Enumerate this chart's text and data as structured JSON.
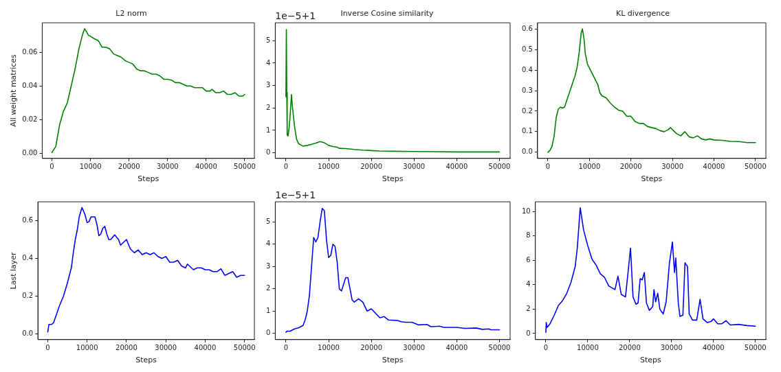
{
  "chart_data": [
    {
      "type": "line",
      "title": "L2 norm",
      "xlabel": "Steps",
      "ylabel": "All weight matrices",
      "grid": false,
      "legend": false,
      "marker": "none",
      "line_style": "solid",
      "xlim": [
        -2500,
        52500
      ],
      "xticks": [
        0,
        10000,
        20000,
        30000,
        40000,
        50000
      ],
      "ylim": [
        -0.003,
        0.0775
      ],
      "yticks": [
        {
          "value": 0,
          "label": "0.00"
        },
        {
          "value": 0.02,
          "label": "0.02"
        },
        {
          "value": 0.04,
          "label": "0.04"
        },
        {
          "value": 0.06,
          "label": "0.06"
        }
      ],
      "x": [
        0,
        1000,
        2000,
        3000,
        4000,
        5000,
        6000,
        7000,
        8000,
        8500,
        9000,
        9500,
        10000,
        11000,
        12000,
        13000,
        14000,
        15000,
        16000,
        17000,
        18000,
        19000,
        20000,
        21000,
        22000,
        23000,
        24000,
        25000,
        26000,
        27000,
        28000,
        29000,
        30000,
        31000,
        32000,
        33000,
        34000,
        35000,
        36000,
        37000,
        38000,
        39000,
        40000,
        41000,
        41500,
        42500,
        43500,
        44500,
        45500,
        46500,
        47500,
        48500,
        49500,
        50000
      ],
      "series": [
        {
          "color": "#008000",
          "values": [
            0.0005,
            0.004,
            0.017,
            0.025,
            0.03,
            0.04,
            0.05,
            0.062,
            0.071,
            0.074,
            0.072,
            0.07,
            0.0695,
            0.068,
            0.067,
            0.063,
            0.063,
            0.062,
            0.059,
            0.058,
            0.057,
            0.055,
            0.054,
            0.053,
            0.05,
            0.049,
            0.049,
            0.048,
            0.047,
            0.047,
            0.046,
            0.044,
            0.044,
            0.0435,
            0.042,
            0.042,
            0.041,
            0.04,
            0.04,
            0.039,
            0.039,
            0.039,
            0.037,
            0.037,
            0.038,
            0.036,
            0.036,
            0.037,
            0.035,
            0.035,
            0.036,
            0.034,
            0.034,
            0.035
          ]
        }
      ]
    },
    {
      "type": "line",
      "title": "Inverse Cosine similarity",
      "xlabel": "Steps",
      "annotations": [
        "1e−5+1"
      ],
      "grid": false,
      "legend": false,
      "marker": "none",
      "line_style": "solid",
      "xlim": [
        -2500,
        52500
      ],
      "xticks": [
        0,
        10000,
        20000,
        30000,
        40000,
        50000
      ],
      "ylim": [
        -0.25,
        5.8
      ],
      "yticks": [
        0,
        1,
        2,
        3,
        4,
        5
      ],
      "x": [
        0,
        100,
        200,
        300,
        500,
        800,
        1100,
        1300,
        1500,
        2000,
        2500,
        3000,
        4000,
        5000,
        6000,
        7000,
        8000,
        9000,
        10000,
        11000,
        12000,
        12500,
        14000,
        16000,
        18000,
        20000,
        22000,
        25000,
        30000,
        35000,
        40000,
        45000,
        50000
      ],
      "series": [
        {
          "color": "#008000",
          "values": [
            2.5,
            5.5,
            2.7,
            0.8,
            0.75,
            1.2,
            2.0,
            2.6,
            2.1,
            1.2,
            0.6,
            0.4,
            0.3,
            0.33,
            0.38,
            0.43,
            0.5,
            0.45,
            0.33,
            0.28,
            0.25,
            0.2,
            0.19,
            0.15,
            0.12,
            0.1,
            0.08,
            0.07,
            0.06,
            0.05,
            0.04,
            0.04,
            0.04
          ]
        }
      ]
    },
    {
      "type": "line",
      "title": "KL divergence",
      "xlabel": "Steps",
      "grid": false,
      "legend": false,
      "marker": "none",
      "line_style": "solid",
      "xlim": [
        -2500,
        52500
      ],
      "xticks": [
        0,
        10000,
        20000,
        30000,
        40000,
        50000
      ],
      "ylim": [
        -0.03,
        0.63
      ],
      "yticks": [
        {
          "value": 0,
          "label": "0.0"
        },
        {
          "value": 0.1,
          "label": "0.1"
        },
        {
          "value": 0.2,
          "label": "0.2"
        },
        {
          "value": 0.3,
          "label": "0.3"
        },
        {
          "value": 0.4,
          "label": "0.4"
        },
        {
          "value": 0.5,
          "label": "0.5"
        },
        {
          "value": 0.6,
          "label": "0.6"
        }
      ],
      "x": [
        0,
        500,
        1000,
        1500,
        2000,
        2500,
        3000,
        3500,
        4000,
        5000,
        6000,
        6500,
        7000,
        7500,
        8000,
        8300,
        8700,
        9000,
        9500,
        10000,
        11000,
        12000,
        12500,
        13000,
        14000,
        15000,
        16000,
        17000,
        18000,
        19000,
        20000,
        21000,
        22000,
        23000,
        24000,
        25000,
        26000,
        27000,
        28000,
        29000,
        29500,
        30000,
        31000,
        32000,
        33000,
        34000,
        35000,
        36000,
        37000,
        38000,
        39000,
        40000,
        42000,
        44000,
        46000,
        48000,
        50000
      ],
      "series": [
        {
          "color": "#008000",
          "values": [
            0.0,
            0.01,
            0.03,
            0.08,
            0.17,
            0.21,
            0.22,
            0.215,
            0.22,
            0.28,
            0.34,
            0.37,
            0.41,
            0.48,
            0.58,
            0.6,
            0.55,
            0.48,
            0.43,
            0.41,
            0.37,
            0.33,
            0.29,
            0.275,
            0.265,
            0.24,
            0.22,
            0.205,
            0.2,
            0.175,
            0.175,
            0.15,
            0.14,
            0.14,
            0.125,
            0.12,
            0.115,
            0.105,
            0.1,
            0.11,
            0.12,
            0.11,
            0.09,
            0.08,
            0.1,
            0.075,
            0.07,
            0.08,
            0.065,
            0.06,
            0.065,
            0.06,
            0.058,
            0.053,
            0.052,
            0.047,
            0.047
          ]
        }
      ]
    },
    {
      "type": "line",
      "xlabel": "Steps",
      "ylabel": "Last layer",
      "grid": false,
      "legend": false,
      "marker": "none",
      "line_style": "solid",
      "xlim": [
        -2500,
        52500
      ],
      "xticks": [
        0,
        10000,
        20000,
        30000,
        40000,
        50000
      ],
      "ylim": [
        -0.03,
        0.7
      ],
      "yticks": [
        {
          "value": 0,
          "label": "0.0"
        },
        {
          "value": 0.2,
          "label": "0.2"
        },
        {
          "value": 0.4,
          "label": "0.4"
        },
        {
          "value": 0.6,
          "label": "0.6"
        }
      ],
      "x": [
        0,
        300,
        1000,
        1500,
        2000,
        3000,
        4000,
        5000,
        6000,
        6500,
        7000,
        7500,
        8000,
        8700,
        9500,
        10000,
        10500,
        11000,
        12000,
        12500,
        13000,
        13500,
        14000,
        14500,
        15000,
        15500,
        16000,
        17000,
        18000,
        18500,
        19000,
        20000,
        21000,
        22000,
        23000,
        24000,
        25000,
        26000,
        27000,
        28000,
        29000,
        30000,
        31000,
        32000,
        33000,
        34000,
        35000,
        35500,
        36000,
        37000,
        38000,
        39000,
        40000,
        41000,
        42000,
        43000,
        44000,
        45000,
        46000,
        47000,
        48000,
        49000,
        50000
      ],
      "series": [
        {
          "color": "#0000ff",
          "values": [
            0.01,
            0.05,
            0.05,
            0.06,
            0.09,
            0.15,
            0.2,
            0.27,
            0.35,
            0.43,
            0.5,
            0.55,
            0.62,
            0.67,
            0.63,
            0.59,
            0.595,
            0.62,
            0.62,
            0.58,
            0.52,
            0.53,
            0.56,
            0.57,
            0.53,
            0.5,
            0.5,
            0.525,
            0.5,
            0.47,
            0.48,
            0.5,
            0.45,
            0.43,
            0.445,
            0.42,
            0.43,
            0.42,
            0.43,
            0.41,
            0.4,
            0.41,
            0.38,
            0.38,
            0.39,
            0.36,
            0.35,
            0.37,
            0.36,
            0.34,
            0.35,
            0.35,
            0.34,
            0.34,
            0.33,
            0.33,
            0.345,
            0.31,
            0.32,
            0.33,
            0.3,
            0.31,
            0.31
          ]
        }
      ]
    },
    {
      "type": "line",
      "xlabel": "Steps",
      "annotations": [
        "1e−5+1"
      ],
      "grid": false,
      "legend": false,
      "marker": "none",
      "line_style": "solid",
      "xlim": [
        -2500,
        52500
      ],
      "xticks": [
        0,
        10000,
        20000,
        30000,
        40000,
        50000
      ],
      "ylim": [
        -0.28,
        5.9
      ],
      "yticks": [
        0,
        1,
        2,
        3,
        4,
        5
      ],
      "x": [
        0,
        300,
        1000,
        2000,
        3000,
        4000,
        4500,
        5000,
        5500,
        6000,
        6500,
        7000,
        7500,
        8000,
        8500,
        9000,
        9500,
        10000,
        10500,
        11000,
        11500,
        12000,
        12500,
        13000,
        13500,
        14000,
        14500,
        15000,
        15500,
        16000,
        17000,
        18000,
        19000,
        20000,
        21000,
        22000,
        23000,
        24000,
        26000,
        27000,
        28000,
        29500,
        31000,
        33000,
        34000,
        36000,
        37000,
        40000,
        42000,
        44500,
        46000,
        47500,
        48000,
        50000
      ],
      "series": [
        {
          "color": "#0000ff",
          "values": [
            0.05,
            0.1,
            0.1,
            0.2,
            0.25,
            0.35,
            0.6,
            1.0,
            1.7,
            3.0,
            4.3,
            4.1,
            4.3,
            5.0,
            5.6,
            5.5,
            4.2,
            3.4,
            3.5,
            4.0,
            3.9,
            3.2,
            2.0,
            1.9,
            2.2,
            2.5,
            2.5,
            2.0,
            1.5,
            1.4,
            1.55,
            1.4,
            1.0,
            1.1,
            0.9,
            0.7,
            0.75,
            0.6,
            0.58,
            0.52,
            0.5,
            0.5,
            0.38,
            0.4,
            0.3,
            0.32,
            0.27,
            0.27,
            0.22,
            0.24,
            0.18,
            0.2,
            0.16,
            0.16
          ]
        }
      ]
    },
    {
      "type": "line",
      "xlabel": "Steps",
      "grid": false,
      "legend": false,
      "marker": "none",
      "line_style": "solid",
      "xlim": [
        -2500,
        52500
      ],
      "xticks": [
        0,
        10000,
        20000,
        30000,
        40000,
        50000
      ],
      "ylim": [
        -0.5,
        10.8
      ],
      "yticks": [
        0,
        2,
        4,
        6,
        8,
        10
      ],
      "x": [
        0,
        100,
        300,
        1000,
        2000,
        3000,
        4000,
        5000,
        6000,
        7000,
        7500,
        8200,
        9000,
        10000,
        11000,
        12000,
        13000,
        14000,
        15000,
        16000,
        16500,
        17200,
        18000,
        19000,
        19700,
        20200,
        20800,
        21500,
        22000,
        22500,
        23000,
        23500,
        24000,
        24700,
        25500,
        25800,
        26200,
        26700,
        27200,
        28000,
        28700,
        29500,
        30200,
        30700,
        31000,
        31600,
        32000,
        32700,
        33200,
        33800,
        34200,
        35000,
        36000,
        36800,
        37500,
        38500,
        39500,
        40000,
        41000,
        42000,
        43000,
        44000,
        46000,
        48000,
        50000
      ],
      "series": [
        {
          "color": "#0000ff",
          "values": [
            0.1,
            0.9,
            0.5,
            0.8,
            1.5,
            2.3,
            2.7,
            3.3,
            4.2,
            5.5,
            7.0,
            10.3,
            8.5,
            7.2,
            6.1,
            5.6,
            4.9,
            4.6,
            3.9,
            3.7,
            3.6,
            4.7,
            3.2,
            3.0,
            5.3,
            7.0,
            3.0,
            2.4,
            2.5,
            4.5,
            4.4,
            5.0,
            2.5,
            1.9,
            2.2,
            3.6,
            2.6,
            3.3,
            2.0,
            1.6,
            2.6,
            5.8,
            7.5,
            5.0,
            6.2,
            2.5,
            1.4,
            1.5,
            5.8,
            5.5,
            1.6,
            1.1,
            1.1,
            2.8,
            1.2,
            0.9,
            1.0,
            1.2,
            0.8,
            0.8,
            1.05,
            0.7,
            0.75,
            0.65,
            0.6
          ]
        }
      ]
    }
  ]
}
